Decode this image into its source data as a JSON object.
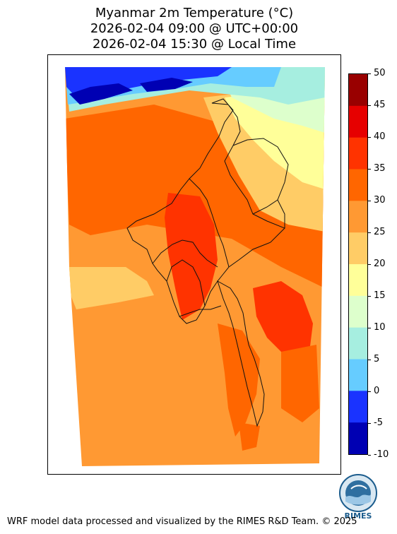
{
  "title": {
    "line1": "Myanmar 2m Temperature (°C)",
    "line2": "2026-02-04 09:00 @ UTC+00:00",
    "line3": "2026-02-04 15:30 @ Local Time"
  },
  "colorbar": {
    "unit": "°C",
    "ticks": [
      "50",
      "45",
      "40",
      "35",
      "30",
      "25",
      "20",
      "15",
      "10",
      "5",
      "0",
      "-5",
      "-10"
    ],
    "bins": [
      {
        "min": 45,
        "max": 50,
        "color": "#990000"
      },
      {
        "min": 40,
        "max": 45,
        "color": "#e60000"
      },
      {
        "min": 35,
        "max": 40,
        "color": "#ff3300"
      },
      {
        "min": 30,
        "max": 35,
        "color": "#ff6600"
      },
      {
        "min": 25,
        "max": 30,
        "color": "#ff9933"
      },
      {
        "min": 20,
        "max": 25,
        "color": "#ffcc66"
      },
      {
        "min": 15,
        "max": 20,
        "color": "#ffff99"
      },
      {
        "min": 10,
        "max": 15,
        "color": "#ddffcc"
      },
      {
        "min": 5,
        "max": 10,
        "color": "#a6eee0"
      },
      {
        "min": 0,
        "max": 5,
        "color": "#66ccff"
      },
      {
        "min": -5,
        "max": 0,
        "color": "#1a33ff"
      },
      {
        "min": -10,
        "max": -5,
        "color": "#0000b3"
      }
    ]
  },
  "logo": {
    "text": "RIMES"
  },
  "footer": "WRF model data processed and visualized by the RIMES R&D Team. © 2025"
}
